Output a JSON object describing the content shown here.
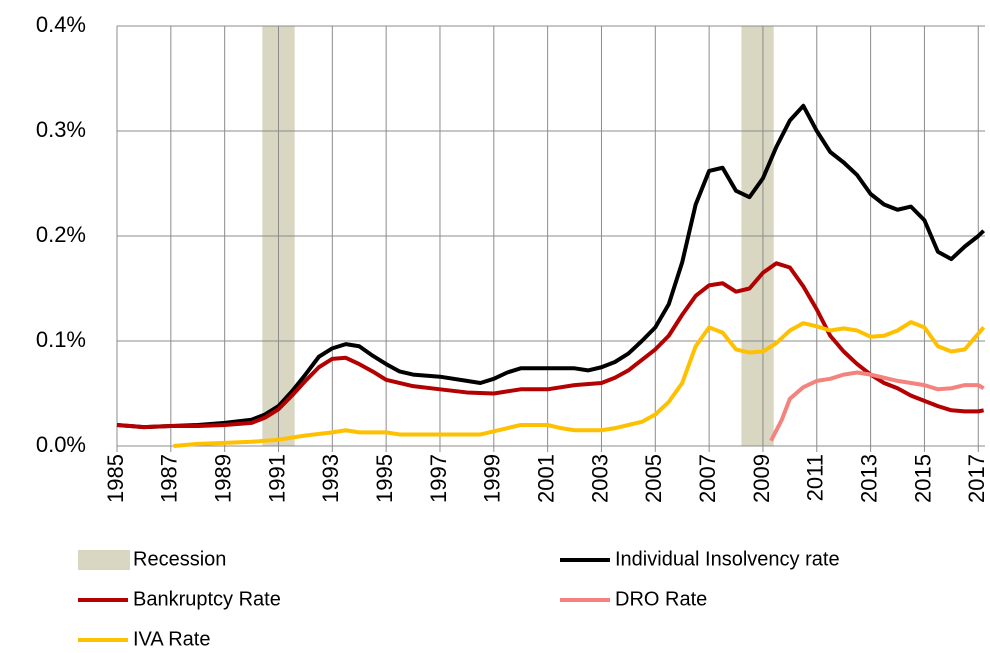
{
  "chart_data": {
    "type": "line",
    "xlim": [
      1985,
      2017.25
    ],
    "xticks": [
      1985,
      1987,
      1989,
      1991,
      1993,
      1995,
      1997,
      1999,
      2001,
      2003,
      2005,
      2007,
      2009,
      2011,
      2013,
      2015,
      2017
    ],
    "ylim": [
      0,
      0.4
    ],
    "yticks": [
      {
        "value": 0,
        "label": "0.0%"
      },
      {
        "value": 0.1,
        "label": "0.1%"
      },
      {
        "value": 0.2,
        "label": "0.2%"
      },
      {
        "value": 0.3,
        "label": "0.3%"
      },
      {
        "value": 0.4,
        "label": "0.4%"
      }
    ],
    "grid": true,
    "series": [
      {
        "name": "Recession",
        "color": "#d9d6c1",
        "bands": [
          [
            1990.4,
            1991.6
          ],
          [
            2008.2,
            2009.4
          ]
        ]
      },
      {
        "name": "Individual Insolvency rate",
        "color": "#000000",
        "x": [
          1985,
          1986,
          1987,
          1988,
          1989,
          1990,
          1990.5,
          1991,
          1991.5,
          1992,
          1992.5,
          1993,
          1993.5,
          1994,
          1994.5,
          1995,
          1995.5,
          1996,
          1997,
          1998,
          1998.5,
          1999,
          1999.5,
          2000,
          2001,
          2002,
          2002.5,
          2003,
          2003.5,
          2004,
          2004.5,
          2005,
          2005.5,
          2006,
          2006.5,
          2007,
          2007.5,
          2008,
          2008.5,
          2009,
          2009.5,
          2010,
          2010.5,
          2011,
          2011.5,
          2012,
          2012.5,
          2013,
          2013.5,
          2014,
          2014.5,
          2015,
          2015.5,
          2016,
          2016.5,
          2017,
          2017.2
        ],
        "values": [
          0.02,
          0.018,
          0.019,
          0.02,
          0.022,
          0.025,
          0.03,
          0.038,
          0.052,
          0.068,
          0.085,
          0.093,
          0.097,
          0.095,
          0.086,
          0.078,
          0.071,
          0.068,
          0.066,
          0.062,
          0.06,
          0.064,
          0.07,
          0.074,
          0.074,
          0.074,
          0.072,
          0.075,
          0.08,
          0.088,
          0.1,
          0.113,
          0.135,
          0.175,
          0.23,
          0.262,
          0.265,
          0.243,
          0.237,
          0.255,
          0.285,
          0.31,
          0.324,
          0.3,
          0.28,
          0.27,
          0.258,
          0.24,
          0.23,
          0.225,
          0.228,
          0.215,
          0.185,
          0.178,
          0.19,
          0.2,
          0.205
        ]
      },
      {
        "name": "Bankruptcy Rate",
        "color": "#b30000",
        "x": [
          1985,
          1986,
          1987,
          1988,
          1989,
          1990,
          1990.5,
          1991,
          1991.5,
          1992,
          1992.5,
          1993,
          1993.5,
          1994,
          1994.5,
          1995,
          1996,
          1997,
          1998,
          1999,
          1999.5,
          2000,
          2001,
          2002,
          2003,
          2003.5,
          2004,
          2004.5,
          2005,
          2005.5,
          2006,
          2006.5,
          2007,
          2007.5,
          2008,
          2008.5,
          2009,
          2009.5,
          2010,
          2010.5,
          2011,
          2011.5,
          2012,
          2012.5,
          2013,
          2013.5,
          2014,
          2014.5,
          2015,
          2015.5,
          2016,
          2016.5,
          2017,
          2017.2
        ],
        "values": [
          0.02,
          0.018,
          0.019,
          0.019,
          0.02,
          0.022,
          0.027,
          0.035,
          0.048,
          0.062,
          0.075,
          0.083,
          0.084,
          0.078,
          0.071,
          0.063,
          0.057,
          0.054,
          0.051,
          0.05,
          0.052,
          0.054,
          0.054,
          0.058,
          0.06,
          0.065,
          0.072,
          0.082,
          0.092,
          0.105,
          0.125,
          0.143,
          0.153,
          0.155,
          0.147,
          0.15,
          0.165,
          0.174,
          0.17,
          0.152,
          0.13,
          0.105,
          0.09,
          0.078,
          0.068,
          0.06,
          0.055,
          0.048,
          0.043,
          0.038,
          0.034,
          0.033,
          0.033,
          0.034
        ]
      },
      {
        "name": "DRO Rate",
        "color": "#f4837d",
        "x": [
          2009.3,
          2009.7,
          2010,
          2010.5,
          2011,
          2011.5,
          2012,
          2012.5,
          2013,
          2013.5,
          2014,
          2014.5,
          2015,
          2015.5,
          2016,
          2016.5,
          2017,
          2017.2
        ],
        "values": [
          0.005,
          0.025,
          0.045,
          0.056,
          0.062,
          0.064,
          0.068,
          0.07,
          0.068,
          0.065,
          0.062,
          0.06,
          0.058,
          0.054,
          0.055,
          0.058,
          0.058,
          0.055
        ]
      },
      {
        "name": "IVA Rate",
        "color": "#ffc000",
        "x": [
          1987.1,
          1988,
          1989,
          1990,
          1991,
          1992,
          1993,
          1993.5,
          1994,
          1995,
          1995.5,
          1997,
          1998,
          1998.5,
          1999,
          1999.5,
          2000,
          2001,
          2001.5,
          2002,
          2003,
          2003.5,
          2004,
          2004.5,
          2005,
          2005.5,
          2006,
          2006.5,
          2007,
          2007.5,
          2008,
          2008.5,
          2009,
          2009.5,
          2010,
          2010.5,
          2011,
          2011.5,
          2012,
          2012.5,
          2013,
          2013.5,
          2014,
          2014.5,
          2015,
          2015.5,
          2016,
          2016.5,
          2017,
          2017.2
        ],
        "values": [
          0.0,
          0.002,
          0.003,
          0.004,
          0.006,
          0.01,
          0.013,
          0.015,
          0.013,
          0.013,
          0.011,
          0.011,
          0.011,
          0.011,
          0.014,
          0.017,
          0.02,
          0.02,
          0.017,
          0.015,
          0.015,
          0.017,
          0.02,
          0.023,
          0.03,
          0.042,
          0.06,
          0.095,
          0.113,
          0.108,
          0.092,
          0.089,
          0.09,
          0.098,
          0.11,
          0.117,
          0.114,
          0.11,
          0.112,
          0.11,
          0.104,
          0.105,
          0.11,
          0.118,
          0.113,
          0.095,
          0.09,
          0.092,
          0.107,
          0.113
        ]
      }
    ]
  }
}
